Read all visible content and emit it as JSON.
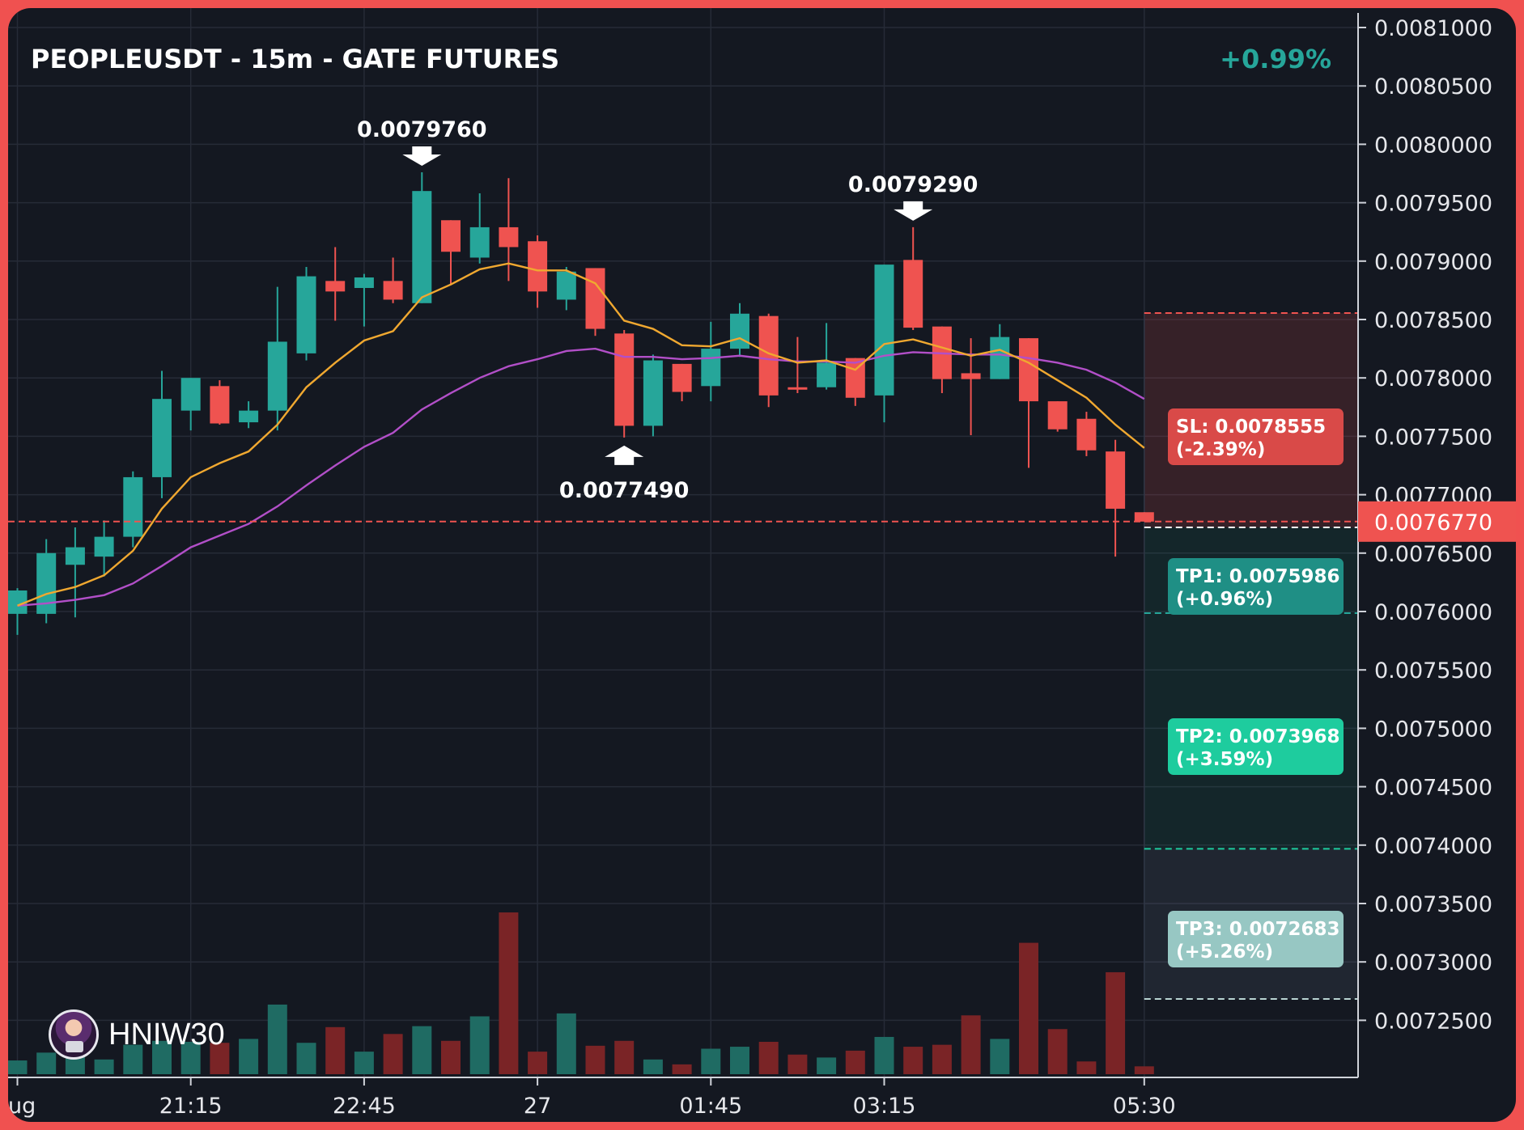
{
  "header": {
    "title": "PEOPLEUSDT - 15m - GATE FUTURES",
    "change": "+0.99%"
  },
  "watermark": {
    "name": "HNIW30",
    "icon": "avatar-icon"
  },
  "colors": {
    "up": "#26a69a",
    "down": "#ef5350",
    "ema_fast": "#f0a830",
    "ema_slow": "#b24fc8",
    "sl": "#d94a48",
    "tp1": "#1f8f85",
    "tp2": "#1ecc9e",
    "tp3": "#97c7c3"
  },
  "chart_data": {
    "type": "candlestick",
    "interval": "15m",
    "ylim": [
      0.00722,
      0.00813
    ],
    "y_ticks": [
      "0.0081000",
      "0.0080500",
      "0.0080000",
      "0.0079500",
      "0.0079000",
      "0.0078500",
      "0.0078000",
      "0.0077500",
      "0.0077000",
      "0.0076500",
      "0.0076000",
      "0.0075500",
      "0.0075000",
      "0.0074500",
      "0.0074000",
      "0.0073500",
      "0.0073000",
      "0.0072500"
    ],
    "x_ticks": [
      {
        "label": "ug",
        "index": 0
      },
      {
        "label": "21:15",
        "index": 6
      },
      {
        "label": "22:45",
        "index": 12
      },
      {
        "label": "27",
        "index": 18
      },
      {
        "label": "01:45",
        "index": 24
      },
      {
        "label": "03:15",
        "index": 30
      },
      {
        "label": "05:30",
        "index": 39
      }
    ],
    "candles": [
      {
        "o": 0.007598,
        "h": 0.00762,
        "l": 0.00758,
        "c": 0.007618
      },
      {
        "o": 0.007598,
        "h": 0.007662,
        "l": 0.00759,
        "c": 0.00765
      },
      {
        "o": 0.00764,
        "h": 0.007672,
        "l": 0.007595,
        "c": 0.007655
      },
      {
        "o": 0.007647,
        "h": 0.007678,
        "l": 0.00763,
        "c": 0.007664
      },
      {
        "o": 0.007664,
        "h": 0.00772,
        "l": 0.007655,
        "c": 0.007715
      },
      {
        "o": 0.007715,
        "h": 0.007806,
        "l": 0.007697,
        "c": 0.007782
      },
      {
        "o": 0.007772,
        "h": 0.0078,
        "l": 0.007755,
        "c": 0.0078
      },
      {
        "o": 0.007793,
        "h": 0.007798,
        "l": 0.00776,
        "c": 0.007761
      },
      {
        "o": 0.007762,
        "h": 0.00778,
        "l": 0.007757,
        "c": 0.007772
      },
      {
        "o": 0.007772,
        "h": 0.007878,
        "l": 0.007755,
        "c": 0.007831
      },
      {
        "o": 0.007821,
        "h": 0.007895,
        "l": 0.007815,
        "c": 0.007887
      },
      {
        "o": 0.007883,
        "h": 0.007912,
        "l": 0.007849,
        "c": 0.007874
      },
      {
        "o": 0.007877,
        "h": 0.007889,
        "l": 0.007844,
        "c": 0.007886
      },
      {
        "o": 0.007883,
        "h": 0.007903,
        "l": 0.007864,
        "c": 0.007867
      },
      {
        "o": 0.007864,
        "h": 0.007976,
        "l": 0.007864,
        "c": 0.00796
      },
      {
        "o": 0.007935,
        "h": 0.007935,
        "l": 0.00788,
        "c": 0.007908
      },
      {
        "o": 0.007903,
        "h": 0.007958,
        "l": 0.007898,
        "c": 0.007929
      },
      {
        "o": 0.007929,
        "h": 0.007971,
        "l": 0.007883,
        "c": 0.007912
      },
      {
        "o": 0.007917,
        "h": 0.007922,
        "l": 0.00786,
        "c": 0.007874
      },
      {
        "o": 0.007867,
        "h": 0.007895,
        "l": 0.007858,
        "c": 0.007891
      },
      {
        "o": 0.007894,
        "h": 0.007894,
        "l": 0.007836,
        "c": 0.007842
      },
      {
        "o": 0.007838,
        "h": 0.007841,
        "l": 0.007749,
        "c": 0.007759
      },
      {
        "o": 0.007759,
        "h": 0.00782,
        "l": 0.00775,
        "c": 0.007815
      },
      {
        "o": 0.007812,
        "h": 0.007812,
        "l": 0.00778,
        "c": 0.007788
      },
      {
        "o": 0.007793,
        "h": 0.007848,
        "l": 0.00778,
        "c": 0.007825
      },
      {
        "o": 0.007825,
        "h": 0.007864,
        "l": 0.007818,
        "c": 0.007855
      },
      {
        "o": 0.007853,
        "h": 0.007855,
        "l": 0.007775,
        "c": 0.007785
      },
      {
        "o": 0.007792,
        "h": 0.007835,
        "l": 0.007787,
        "c": 0.00779
      },
      {
        "o": 0.007792,
        "h": 0.007847,
        "l": 0.00779,
        "c": 0.007813
      },
      {
        "o": 0.007817,
        "h": 0.007817,
        "l": 0.007776,
        "c": 0.007783
      },
      {
        "o": 0.007785,
        "h": 0.007897,
        "l": 0.007762,
        "c": 0.007897
      },
      {
        "o": 0.007901,
        "h": 0.007929,
        "l": 0.007841,
        "c": 0.007843
      },
      {
        "o": 0.007844,
        "h": 0.007844,
        "l": 0.007787,
        "c": 0.007799
      },
      {
        "o": 0.007804,
        "h": 0.007834,
        "l": 0.007751,
        "c": 0.007799
      },
      {
        "o": 0.007799,
        "h": 0.007846,
        "l": 0.007799,
        "c": 0.007835
      },
      {
        "o": 0.007834,
        "h": 0.007834,
        "l": 0.007723,
        "c": 0.00778
      },
      {
        "o": 0.00778,
        "h": 0.00778,
        "l": 0.007754,
        "c": 0.007756
      },
      {
        "o": 0.007765,
        "h": 0.007771,
        "l": 0.007733,
        "c": 0.007738
      },
      {
        "o": 0.007737,
        "h": 0.007747,
        "l": 0.007647,
        "c": 0.007688
      },
      {
        "o": 0.007685,
        "h": 0.007685,
        "l": 0.007677,
        "c": 0.007677
      }
    ],
    "volume": [
      14,
      22,
      21,
      15,
      30,
      34,
      33,
      32,
      36,
      71,
      32,
      48,
      23,
      41,
      49,
      34,
      59,
      165,
      23,
      62,
      29,
      34,
      15,
      10,
      26,
      28,
      33,
      20,
      17,
      24,
      38,
      28,
      30,
      60,
      36,
      134,
      46,
      13,
      104,
      8
    ],
    "ema_fast": [
      0.007605,
      0.007615,
      0.007621,
      0.007631,
      0.007652,
      0.007688,
      0.007715,
      0.007727,
      0.007737,
      0.00776,
      0.007792,
      0.007813,
      0.007832,
      0.00784,
      0.007869,
      0.00788,
      0.007893,
      0.007898,
      0.007892,
      0.007892,
      0.007881,
      0.007849,
      0.007842,
      0.007828,
      0.007827,
      0.007834,
      0.007821,
      0.007813,
      0.007815,
      0.007807,
      0.007829,
      0.007833,
      0.007826,
      0.007819,
      0.007824,
      0.007813,
      0.007798,
      0.007783,
      0.00776,
      0.00774
    ],
    "ema_slow": [
      0.007605,
      0.007607,
      0.00761,
      0.007614,
      0.007624,
      0.007639,
      0.007655,
      0.007665,
      0.007675,
      0.00769,
      0.007708,
      0.007725,
      0.007741,
      0.007753,
      0.007773,
      0.007787,
      0.0078,
      0.00781,
      0.007816,
      0.007823,
      0.007825,
      0.007818,
      0.007818,
      0.007816,
      0.007817,
      0.007819,
      0.007816,
      0.007814,
      0.007814,
      0.007813,
      0.007819,
      0.007822,
      0.007821,
      0.00782,
      0.00782,
      0.007817,
      0.007813,
      0.007807,
      0.007796,
      0.007782
    ],
    "last_price": "0.0076770",
    "annotations": [
      {
        "label": "0.0079760",
        "index": 14,
        "price": 0.007976,
        "kind": "high"
      },
      {
        "label": "0.0077490",
        "index": 21,
        "price": 0.007749,
        "kind": "low"
      },
      {
        "label": "0.0079290",
        "index": 31,
        "price": 0.007929,
        "kind": "high"
      }
    ],
    "levels": {
      "sl": {
        "price": 0.0078555,
        "label": "SL: 0.0078555",
        "pct": "(-2.39%)"
      },
      "entry": {
        "price": 0.007672
      },
      "tp1": {
        "price": 0.0075986,
        "label": "TP1: 0.0075986",
        "pct": "(+0.96%)"
      },
      "tp2": {
        "price": 0.0073968,
        "label": "TP2: 0.0073968",
        "pct": "(+3.59%)"
      },
      "tp3": {
        "price": 0.0072683,
        "label": "TP3: 0.0072683",
        "pct": "(+5.26%)"
      }
    }
  }
}
